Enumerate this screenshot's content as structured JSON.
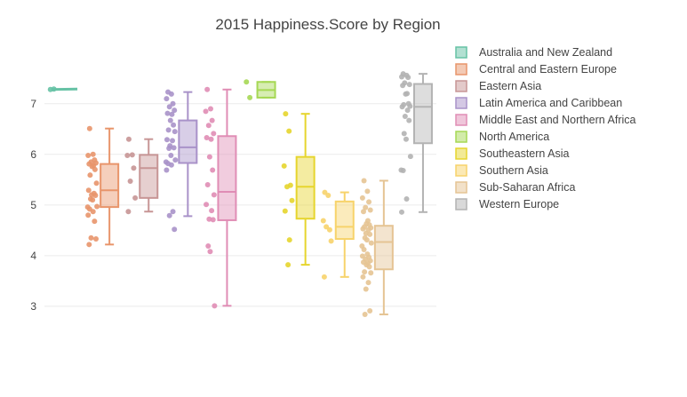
{
  "chart_data": {
    "type": "box",
    "title": "2015 Happiness.Score by Region",
    "xlabel": "",
    "ylabel": "",
    "ylim": [
      2.7,
      7.75
    ],
    "yticks": [
      3,
      4,
      5,
      6,
      7
    ],
    "ytick_labels": [
      "3",
      "4",
      "5",
      "6",
      "7"
    ],
    "grid": true,
    "legend_position": "top-right",
    "series": [
      {
        "name": "Australia and New Zealand",
        "color": "#66c2a5",
        "box": null,
        "points": [
          7.28,
          7.29
        ]
      },
      {
        "name": "Central and Eastern Europe",
        "color": "#e8956b",
        "box": {
          "q1": 4.96,
          "median": 5.29,
          "q3": 5.81,
          "lower": 4.22,
          "upper": 6.51
        },
        "points": [
          6.51,
          6.0,
          5.98,
          5.89,
          5.85,
          5.83,
          5.81,
          5.78,
          5.76,
          5.7,
          5.59,
          5.43,
          5.29,
          5.23,
          5.2,
          5.19,
          5.12,
          5.1,
          4.97,
          4.96,
          4.92,
          4.87,
          4.8,
          4.68,
          4.35,
          4.33,
          4.22
        ]
      },
      {
        "name": "Eastern Asia",
        "color": "#c79595",
        "box": {
          "q1": 5.14,
          "median": 5.73,
          "q3": 5.99,
          "lower": 4.87,
          "upper": 6.3
        },
        "points": [
          6.3,
          5.99,
          5.98,
          5.73,
          5.47,
          5.14,
          4.87
        ]
      },
      {
        "name": "Latin America and Caribbean",
        "color": "#a992c9",
        "box": {
          "q1": 5.83,
          "median": 6.14,
          "q3": 6.67,
          "lower": 4.78,
          "upper": 7.23
        },
        "points": [
          7.23,
          7.19,
          7.1,
          7.0,
          6.94,
          6.87,
          6.81,
          6.79,
          6.67,
          6.58,
          6.48,
          6.45,
          6.29,
          6.27,
          6.17,
          6.13,
          6.12,
          5.98,
          5.89,
          5.85,
          5.82,
          5.79,
          5.69,
          4.87,
          4.79,
          4.52
        ]
      },
      {
        "name": "Middle East and Northern Africa",
        "color": "#e08db5",
        "box": {
          "q1": 4.7,
          "median": 5.26,
          "q3": 6.36,
          "lower": 3.01,
          "upper": 7.28
        },
        "points": [
          7.28,
          6.9,
          6.85,
          6.67,
          6.57,
          6.41,
          6.33,
          6.3,
          5.95,
          5.69,
          5.4,
          5.2,
          5.01,
          4.89,
          4.72,
          4.71,
          4.19,
          4.08,
          3.01
        ]
      },
      {
        "name": "North America",
        "color": "#a6d854",
        "box": {
          "q1": 7.12,
          "median": 7.27,
          "q3": 7.43,
          "lower": 7.12,
          "upper": 7.43
        },
        "points": [
          7.43,
          7.12
        ]
      },
      {
        "name": "Southeastern Asia",
        "color": "#e6d52e",
        "box": {
          "q1": 4.73,
          "median": 5.36,
          "q3": 5.95,
          "lower": 3.82,
          "upper": 6.8
        },
        "points": [
          6.8,
          6.46,
          5.77,
          5.39,
          5.36,
          5.09,
          4.88,
          4.31,
          3.82
        ]
      },
      {
        "name": "Southern Asia",
        "color": "#f7d36b",
        "box": {
          "q1": 4.33,
          "median": 4.57,
          "q3": 5.07,
          "lower": 3.58,
          "upper": 5.25
        },
        "points": [
          5.25,
          5.19,
          4.69,
          4.51,
          4.57,
          4.29,
          3.58
        ]
      },
      {
        "name": "Sub-Saharan Africa",
        "color": "#e5c494",
        "box": {
          "q1": 3.73,
          "median": 4.27,
          "q3": 4.59,
          "lower": 2.84,
          "upper": 5.48
        },
        "points": [
          5.48,
          5.27,
          5.14,
          5.06,
          4.95,
          4.9,
          4.87,
          4.69,
          4.63,
          4.61,
          4.57,
          4.55,
          4.53,
          4.51,
          4.44,
          4.42,
          4.35,
          4.31,
          4.25,
          4.19,
          4.12,
          4.03,
          3.99,
          3.97,
          3.93,
          3.9,
          3.87,
          3.85,
          3.82,
          3.78,
          3.68,
          3.66,
          3.58,
          3.47,
          3.34,
          2.91,
          2.84
        ]
      },
      {
        "name": "Western Europe",
        "color": "#b3b3b3",
        "box": {
          "q1": 6.22,
          "median": 6.94,
          "q3": 7.39,
          "lower": 4.86,
          "upper": 7.59
        },
        "points": [
          7.59,
          7.56,
          7.53,
          7.52,
          7.41,
          7.38,
          7.36,
          7.2,
          7.19,
          7.0,
          6.98,
          6.95,
          6.94,
          6.87,
          6.75,
          6.67,
          6.41,
          6.3,
          5.96,
          5.69,
          5.68,
          5.12,
          4.86
        ]
      }
    ]
  }
}
